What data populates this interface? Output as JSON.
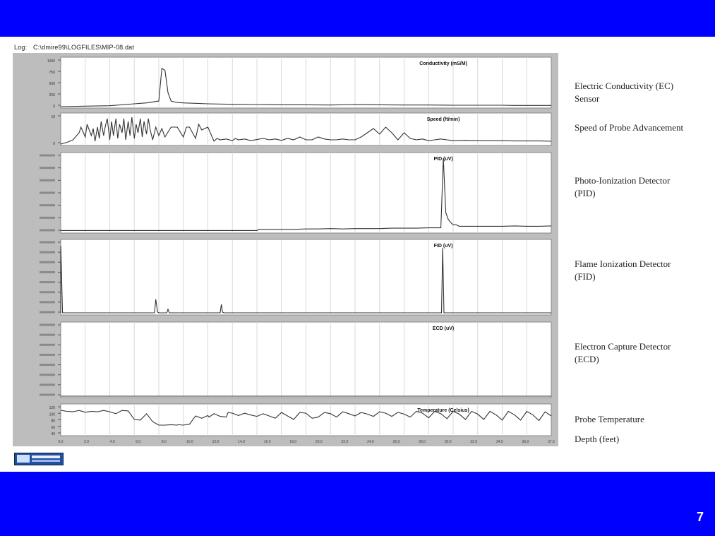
{
  "log": {
    "label": "Log:",
    "path": "C:\\dmire99\\LOGFILES\\MIP-08.dat"
  },
  "slide_number": "7",
  "side_labels": {
    "ec": "Electric Conductivity (EC)\nSensor",
    "speed": "Speed of Probe Advancement",
    "pid": "Photo-Ionization Detector\n(PID)",
    "fid": "Flame Ionization Detector\n(FID)",
    "ecd": "Electron Capture Detector\n(ECD)",
    "temp": "Probe Temperature",
    "depth": "Depth (feet)"
  },
  "colors": {
    "band": "#0000ff",
    "frame": "#bdbdbd",
    "trace": "#333333",
    "grid": "#d8d8d8"
  },
  "chart_data": [
    {
      "type": "line",
      "title": "Conductivity (mS/M)",
      "ylim": [
        0,
        1000
      ],
      "yticks": [
        "1000",
        "750",
        "500",
        "250",
        "0"
      ],
      "x": [
        0,
        4,
        8,
        12,
        14,
        16,
        16.5,
        17,
        17.5,
        18,
        19,
        20,
        24,
        28,
        32,
        36,
        40,
        44,
        48,
        52,
        56,
        60,
        64,
        68,
        72,
        74,
        76,
        80
      ],
      "y": [
        0,
        10,
        20,
        60,
        80,
        120,
        820,
        780,
        300,
        120,
        90,
        80,
        60,
        50,
        45,
        40,
        40,
        35,
        45,
        40,
        35,
        35,
        30,
        30,
        30,
        25,
        25,
        25
      ]
    },
    {
      "type": "line",
      "title": "Speed (ft/min)",
      "ylim": [
        0,
        10
      ],
      "yticks": [
        "10",
        "0"
      ],
      "x": [
        0,
        1,
        2,
        3,
        3.3,
        4,
        4.3,
        5,
        5.3,
        5.6,
        6,
        6.3,
        6.6,
        7,
        7.3,
        7.6,
        8,
        8.3,
        8.6,
        9,
        9.3,
        9.6,
        10,
        10.3,
        10.6,
        11,
        11.3,
        11.6,
        12,
        12.3,
        12.6,
        13,
        13.3,
        13.6,
        14,
        14.3,
        14.6,
        15,
        15.5,
        16,
        16.5,
        17,
        18,
        19,
        20,
        20.5,
        21,
        22,
        22.5,
        23,
        24,
        25,
        25.5,
        26,
        27,
        28,
        28.5,
        29,
        30,
        31,
        32,
        33,
        34,
        35,
        36,
        37,
        38,
        39,
        40,
        41,
        42,
        43,
        44,
        45,
        46,
        47,
        48,
        49,
        50,
        51,
        52,
        53,
        54,
        55,
        56,
        57,
        58,
        59,
        60,
        61,
        62,
        63,
        64,
        66,
        68,
        70,
        72,
        74,
        76,
        78,
        80
      ],
      "y": [
        0,
        0.6,
        1.5,
        4,
        6,
        2.5,
        7,
        3,
        5.5,
        1,
        6,
        2,
        8,
        3,
        6.5,
        9,
        1.5,
        8,
        3,
        9,
        2,
        7,
        4,
        9,
        1.5,
        8,
        3,
        9.5,
        2,
        7,
        4,
        9,
        2.5,
        8,
        3.5,
        9,
        5,
        1.5,
        6,
        3,
        5.5,
        2.5,
        6,
        6,
        2.5,
        6,
        6,
        2,
        7,
        5,
        6,
        1,
        2,
        1.5,
        1.8,
        1.2,
        2,
        1.5,
        1.8,
        1.2,
        1.6,
        2,
        1.5,
        1.8,
        1.3,
        2,
        1.5,
        2.5,
        1.5,
        1.5,
        2.5,
        1.8,
        1.5,
        1.5,
        1.8,
        1.5,
        1.5,
        2.5,
        4,
        5.5,
        3.5,
        6,
        4,
        1.5,
        4,
        2,
        1.5,
        1.8,
        1.2,
        1.5,
        1.8,
        1.5,
        1.2,
        1.3,
        1.2,
        1.2,
        1.2,
        1.1,
        1.1,
        1.1,
        1
      ]
    },
    {
      "type": "line",
      "title": "PID (uV)",
      "ylim": [
        0,
        10
      ],
      "yticks": [
        "",
        "",
        "",
        "",
        "",
        "",
        ""
      ],
      "x": [
        0,
        2,
        4,
        6,
        8,
        10,
        12,
        14,
        16,
        18,
        20,
        22,
        24,
        26,
        28,
        30,
        32,
        32.3,
        34,
        36,
        38,
        40,
        42,
        44,
        46,
        48,
        50,
        52,
        54,
        56,
        58,
        60,
        62,
        62.4,
        62.8,
        63.2,
        63.6,
        64,
        64.5,
        65,
        66,
        68,
        70,
        72,
        74,
        76,
        78,
        80
      ],
      "y": [
        0.15,
        0.15,
        0.15,
        0.15,
        0.15,
        0.15,
        0.15,
        0.15,
        0.15,
        0.15,
        0.15,
        0.15,
        0.15,
        0.15,
        0.15,
        0.15,
        0.15,
        0.3,
        0.3,
        0.3,
        0.3,
        0.35,
        0.35,
        0.4,
        0.35,
        0.4,
        0.4,
        0.4,
        0.45,
        0.45,
        0.45,
        0.5,
        0.5,
        9.6,
        2.5,
        1.6,
        1.2,
        0.9,
        0.9,
        0.7,
        0.7,
        0.7,
        0.7,
        0.7,
        0.75,
        0.7,
        0.7,
        0.75
      ]
    },
    {
      "type": "line",
      "title": "FID (uV)",
      "ylim": [
        0,
        10
      ],
      "yticks": [
        "",
        "",
        "",
        "",
        "",
        "",
        "",
        ""
      ],
      "x": [
        0,
        0.01,
        0.3,
        1,
        4,
        8,
        12,
        15.3,
        15.5,
        15.8,
        16,
        17.3,
        17.5,
        17.7,
        20,
        24,
        26,
        26.2,
        26.4,
        26.6,
        28,
        32,
        36,
        40,
        44,
        48,
        52,
        56,
        60,
        62.1,
        62.3,
        62.5,
        62.7,
        64,
        68,
        72,
        76,
        80
      ],
      "y": [
        0.1,
        9.5,
        0.1,
        0.1,
        0.1,
        0.1,
        0.1,
        0.1,
        2,
        0.2,
        0.1,
        0.1,
        0.6,
        0.1,
        0.1,
        0.1,
        0.1,
        1.3,
        0.2,
        0.1,
        0.1,
        0.1,
        0.1,
        0.1,
        0.1,
        0.1,
        0.1,
        0.1,
        0.1,
        0.1,
        9.2,
        0.1,
        0.1,
        0.1,
        0.1,
        0.1,
        0.1,
        0.1
      ]
    },
    {
      "type": "line",
      "title": "ECD (uV)",
      "ylim": [
        0,
        10
      ],
      "yticks": [
        "",
        "",
        "",
        "",
        "",
        "",
        "",
        ""
      ],
      "x": [
        0,
        80
      ],
      "y": [
        0,
        0
      ]
    },
    {
      "type": "line",
      "title": "Temperature (Celsius)",
      "ylim": [
        0,
        120
      ],
      "yticks": [
        "120",
        "100",
        "80",
        "60",
        "40"
      ],
      "x": [
        0,
        1,
        2,
        3,
        4,
        5,
        6,
        7,
        8,
        9,
        10,
        11,
        12,
        13,
        14,
        15,
        16,
        17,
        18,
        19,
        19.2,
        20,
        21,
        22,
        23,
        24,
        24.2,
        25,
        26,
        27,
        27.3,
        28,
        29,
        30,
        31,
        32,
        33,
        34,
        35,
        36,
        37,
        38,
        39,
        40,
        41,
        42,
        43,
        44,
        45,
        46,
        47,
        48,
        49,
        50,
        51,
        52,
        53,
        54,
        55,
        56,
        57,
        58,
        59,
        60,
        61,
        62,
        63,
        64,
        65,
        66,
        67,
        68,
        69,
        70,
        71,
        72,
        73,
        74,
        75,
        76,
        77,
        78,
        79,
        80
      ],
      "y": [
        105,
        100,
        98,
        104,
        96,
        100,
        98,
        104,
        98,
        90,
        104,
        102,
        65,
        62,
        90,
        55,
        40,
        40,
        42,
        40,
        42,
        40,
        44,
        80,
        70,
        82,
        75,
        90,
        78,
        75,
        95,
        92,
        82,
        92,
        84,
        78,
        90,
        80,
        70,
        95,
        80,
        65,
        95,
        92,
        70,
        75,
        95,
        90,
        75,
        98,
        90,
        80,
        95,
        88,
        78,
        98,
        92,
        78,
        96,
        88,
        75,
        100,
        92,
        72,
        100,
        90,
        68,
        100,
        88,
        65,
        100,
        88,
        65,
        100,
        85,
        62,
        100,
        85,
        62,
        100,
        85,
        60,
        98,
        80
      ],
      "xticks": [
        "0.0",
        "2.0",
        "4.0",
        "6.0",
        "8.0",
        "10.0",
        "12.0",
        "14.0",
        "16.0",
        "18.0",
        "20.0",
        "22.0",
        "24.0",
        "26.0",
        "28.0",
        "30.0",
        "32.0",
        "34.0",
        "36.0",
        "37.5"
      ]
    }
  ]
}
